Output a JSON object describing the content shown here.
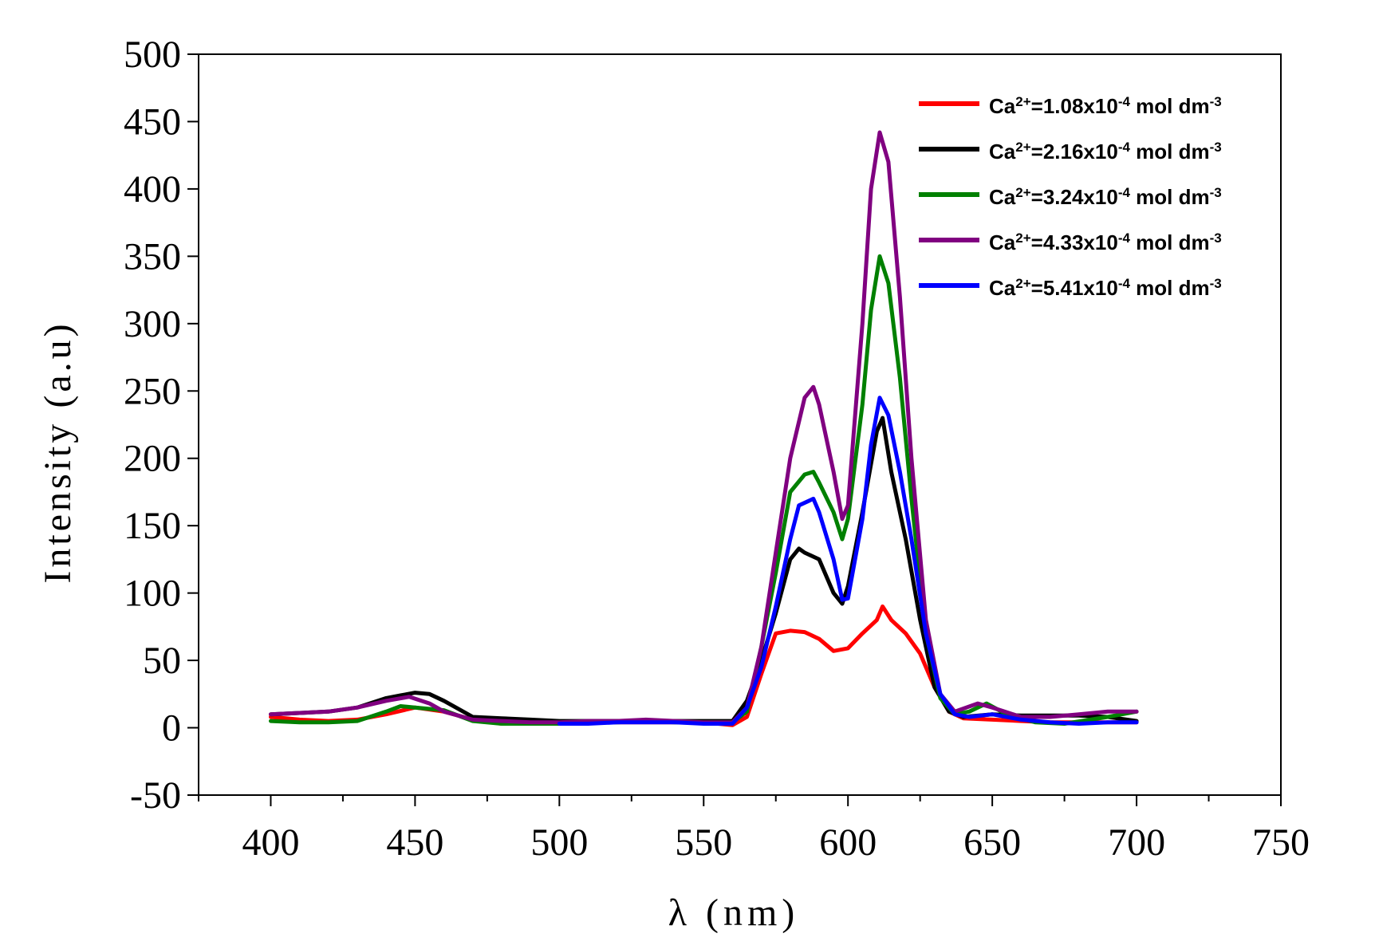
{
  "chart_data": {
    "type": "line",
    "xlabel": "λ (nm)",
    "ylabel": "Intensity (a.u)",
    "xlim": [
      375,
      750
    ],
    "ylim": [
      -50,
      500
    ],
    "xticks": [
      400,
      450,
      500,
      550,
      600,
      650,
      700,
      750
    ],
    "xtick_labels": [
      "400",
      "450",
      "500",
      "550",
      "600",
      "650",
      "700",
      "750"
    ],
    "yticks": [
      -50,
      0,
      50,
      100,
      150,
      200,
      250,
      300,
      350,
      400,
      450,
      500
    ],
    "ytick_labels": [
      "-50",
      "0",
      "50",
      "100",
      "150",
      "200",
      "250",
      "300",
      "350",
      "400",
      "450",
      "500"
    ],
    "grid": false,
    "legend_position": "top-right",
    "legend": [
      {
        "pre": "Ca",
        "sup1": "2+",
        "mid": "=1.08x10",
        "sup2": "-4",
        "post": " mol dm",
        "sup3": "-3",
        "color": "#ff0000"
      },
      {
        "pre": "Ca",
        "sup1": "2+",
        "mid": "=2.16x10",
        "sup2": "-4",
        "post": " mol dm",
        "sup3": "-3",
        "color": "#000000"
      },
      {
        "pre": "Ca",
        "sup1": "2+",
        "mid": "=3.24x10",
        "sup2": "-4",
        "post": " mol dm",
        "sup3": "-3",
        "color": "#008000"
      },
      {
        "pre": "Ca",
        "sup1": "2+",
        "mid": "=4.33x10",
        "sup2": "-4",
        "post": " mol dm",
        "sup3": "-3",
        "color": "#800080"
      },
      {
        "pre": "Ca",
        "sup1": "2+",
        "mid": "=5.41x10",
        "sup2": "-4",
        "post": " mol dm",
        "sup3": "-3",
        "color": "#0000ff"
      }
    ],
    "series": [
      {
        "name": "Ca2+=1.08x10-4 mol dm-3",
        "color": "#ff0000",
        "x": [
          400,
          410,
          420,
          430,
          440,
          450,
          460,
          470,
          480,
          490,
          500,
          510,
          520,
          530,
          540,
          550,
          555,
          560,
          565,
          570,
          575,
          580,
          585,
          590,
          595,
          600,
          605,
          610,
          612,
          615,
          620,
          625,
          630,
          635,
          640,
          650,
          660,
          670,
          680,
          690,
          700
        ],
        "y": [
          8,
          6,
          5,
          6,
          10,
          15,
          12,
          6,
          3,
          3,
          3,
          4,
          4,
          4,
          4,
          4,
          3,
          2,
          8,
          40,
          70,
          72,
          71,
          66,
          57,
          59,
          70,
          80,
          90,
          80,
          70,
          55,
          30,
          12,
          7,
          6,
          5,
          4,
          4,
          4,
          4
        ]
      },
      {
        "name": "Ca2+=2.16x10-4 mol dm-3",
        "color": "#000000",
        "x": [
          400,
          410,
          420,
          430,
          440,
          445,
          450,
          455,
          460,
          470,
          480,
          490,
          500,
          510,
          520,
          530,
          540,
          550,
          560,
          565,
          570,
          575,
          580,
          583,
          585,
          590,
          595,
          598,
          600,
          605,
          610,
          612,
          615,
          620,
          625,
          630,
          635,
          640,
          650,
          660,
          670,
          680,
          690,
          700
        ],
        "y": [
          10,
          11,
          12,
          15,
          22,
          24,
          26,
          25,
          20,
          8,
          7,
          6,
          5,
          5,
          5,
          5,
          5,
          5,
          5,
          20,
          50,
          85,
          125,
          133,
          130,
          125,
          100,
          92,
          105,
          160,
          220,
          230,
          190,
          140,
          80,
          30,
          12,
          8,
          10,
          9,
          9,
          9,
          8,
          5
        ]
      },
      {
        "name": "Ca2+=3.24x10-4 mol dm-3",
        "color": "#008000",
        "x": [
          400,
          410,
          420,
          430,
          440,
          445,
          450,
          460,
          470,
          480,
          490,
          500,
          510,
          520,
          530,
          540,
          550,
          560,
          565,
          570,
          575,
          580,
          585,
          588,
          590,
          595,
          598,
          600,
          605,
          608,
          611,
          614,
          618,
          622,
          627,
          632,
          637,
          642,
          648,
          655,
          665,
          675,
          690,
          700
        ],
        "y": [
          5,
          4,
          4,
          5,
          12,
          16,
          15,
          13,
          5,
          3,
          3,
          3,
          4,
          4,
          5,
          4,
          4,
          4,
          12,
          60,
          115,
          175,
          188,
          190,
          182,
          160,
          140,
          155,
          240,
          310,
          350,
          330,
          260,
          170,
          70,
          22,
          10,
          12,
          18,
          10,
          4,
          3,
          8,
          12
        ]
      },
      {
        "name": "Ca2+=4.33x10-4 mol dm-3",
        "color": "#800080",
        "x": [
          400,
          410,
          420,
          430,
          440,
          448,
          455,
          460,
          470,
          480,
          490,
          500,
          510,
          520,
          530,
          540,
          550,
          560,
          565,
          570,
          575,
          580,
          585,
          588,
          590,
          595,
          598,
          600,
          605,
          608,
          611,
          614,
          618,
          622,
          627,
          632,
          637,
          645,
          650,
          660,
          670,
          680,
          690,
          700
        ],
        "y": [
          10,
          11,
          12,
          15,
          20,
          23,
          18,
          12,
          6,
          5,
          4,
          4,
          5,
          5,
          6,
          5,
          4,
          4,
          15,
          60,
          130,
          200,
          245,
          253,
          240,
          190,
          155,
          165,
          300,
          400,
          442,
          420,
          320,
          200,
          80,
          25,
          12,
          18,
          15,
          8,
          8,
          10,
          12,
          12
        ]
      },
      {
        "name": "Ca2+=5.41x10-4 mol dm-3",
        "color": "#0000ff",
        "x": [
          500,
          510,
          520,
          530,
          540,
          550,
          560,
          565,
          570,
          575,
          580,
          583,
          586,
          588,
          590,
          595,
          598,
          600,
          605,
          608,
          611,
          614,
          618,
          622,
          627,
          632,
          637,
          642,
          650,
          660,
          670,
          680,
          690,
          700
        ],
        "y": [
          3,
          3,
          4,
          4,
          4,
          3,
          3,
          15,
          45,
          90,
          140,
          165,
          168,
          170,
          160,
          125,
          95,
          96,
          155,
          210,
          245,
          232,
          190,
          140,
          70,
          25,
          10,
          8,
          10,
          6,
          4,
          3,
          4,
          4
        ]
      }
    ]
  }
}
